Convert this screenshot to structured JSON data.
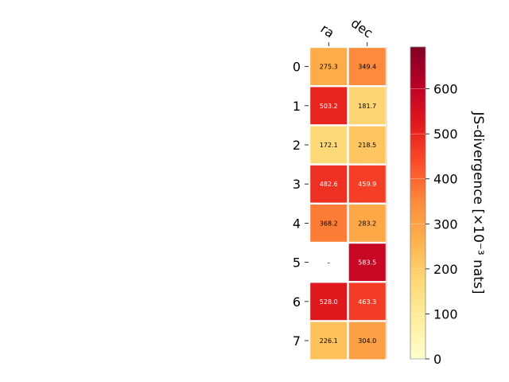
{
  "chart_data": {
    "type": "heatmap",
    "columns": [
      "ra",
      "dec"
    ],
    "rows": [
      "0",
      "1",
      "2",
      "3",
      "4",
      "5",
      "6",
      "7"
    ],
    "values": [
      [
        275.3,
        349.4
      ],
      [
        503.2,
        181.7
      ],
      [
        172.1,
        218.5
      ],
      [
        482.6,
        459.9
      ],
      [
        368.2,
        283.2
      ],
      [
        null,
        583.5
      ],
      [
        528.0,
        463.3
      ],
      [
        226.1,
        304.0
      ]
    ],
    "cell_labels": [
      [
        "275.3",
        "349.4"
      ],
      [
        "503.2",
        "181.7"
      ],
      [
        "172.1",
        "218.5"
      ],
      [
        "482.6",
        "459.9"
      ],
      [
        "368.2",
        "283.2"
      ],
      [
        "–",
        "583.5"
      ],
      [
        "528.0",
        "463.3"
      ],
      [
        "226.1",
        "304.0"
      ]
    ],
    "colorbar": {
      "label": "JS-divergence [×10⁻³ nats]",
      "range": [
        0,
        693
      ],
      "ticks": [
        0,
        100,
        200,
        300,
        400,
        500,
        600
      ],
      "colormap": "YlOrRd"
    },
    "colors": {
      "label_dark": "#000000",
      "label_light": "#ffffff"
    }
  }
}
